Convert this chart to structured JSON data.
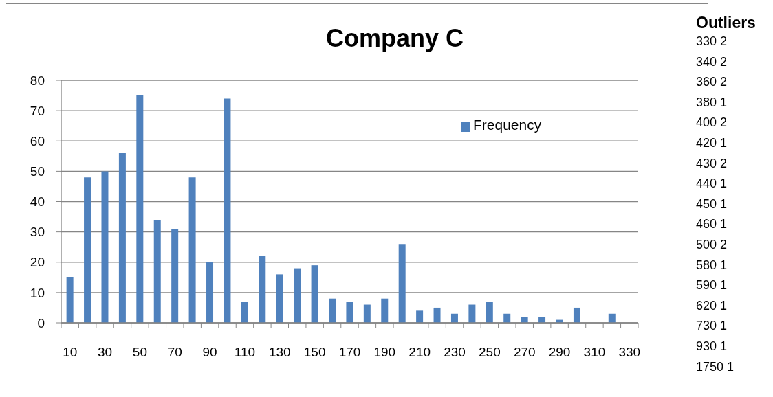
{
  "chart_data": [
    {
      "type": "bar",
      "title": "Company C",
      "categories": [
        "10",
        null,
        "30",
        null,
        "50",
        null,
        "70",
        null,
        "90",
        null,
        "110",
        null,
        "130",
        null,
        "150",
        null,
        "170",
        null,
        "190",
        null,
        "210",
        null,
        "230",
        null,
        "250",
        null,
        "270",
        null,
        "290",
        null,
        "310",
        null,
        "330"
      ],
      "series": [
        {
          "name": "Frequency",
          "color": "#4f81bd",
          "values": [
            15,
            48,
            50,
            56,
            75,
            34,
            31,
            48,
            20,
            74,
            7,
            22,
            16,
            18,
            19,
            8,
            7,
            6,
            8,
            26,
            4,
            5,
            3,
            6,
            7,
            3,
            2,
            2,
            1,
            5,
            0,
            3,
            0
          ]
        }
      ],
      "ylim": [
        0,
        80
      ],
      "yticks": [
        0,
        10,
        20,
        30,
        40,
        50,
        60,
        70,
        80
      ],
      "grid": "y",
      "legend": "top right"
    },
    {
      "type": "other",
      "title": "Outliers",
      "annotations": [
        "330 2",
        "340 2",
        "360 2",
        "380 1",
        "400 2",
        "420 1",
        "430 2",
        "440 1",
        "450 1",
        "460 1",
        "500 2",
        "580 1",
        "590 1",
        "620 1",
        "730 1",
        "930 1",
        "1750 1"
      ]
    }
  ]
}
